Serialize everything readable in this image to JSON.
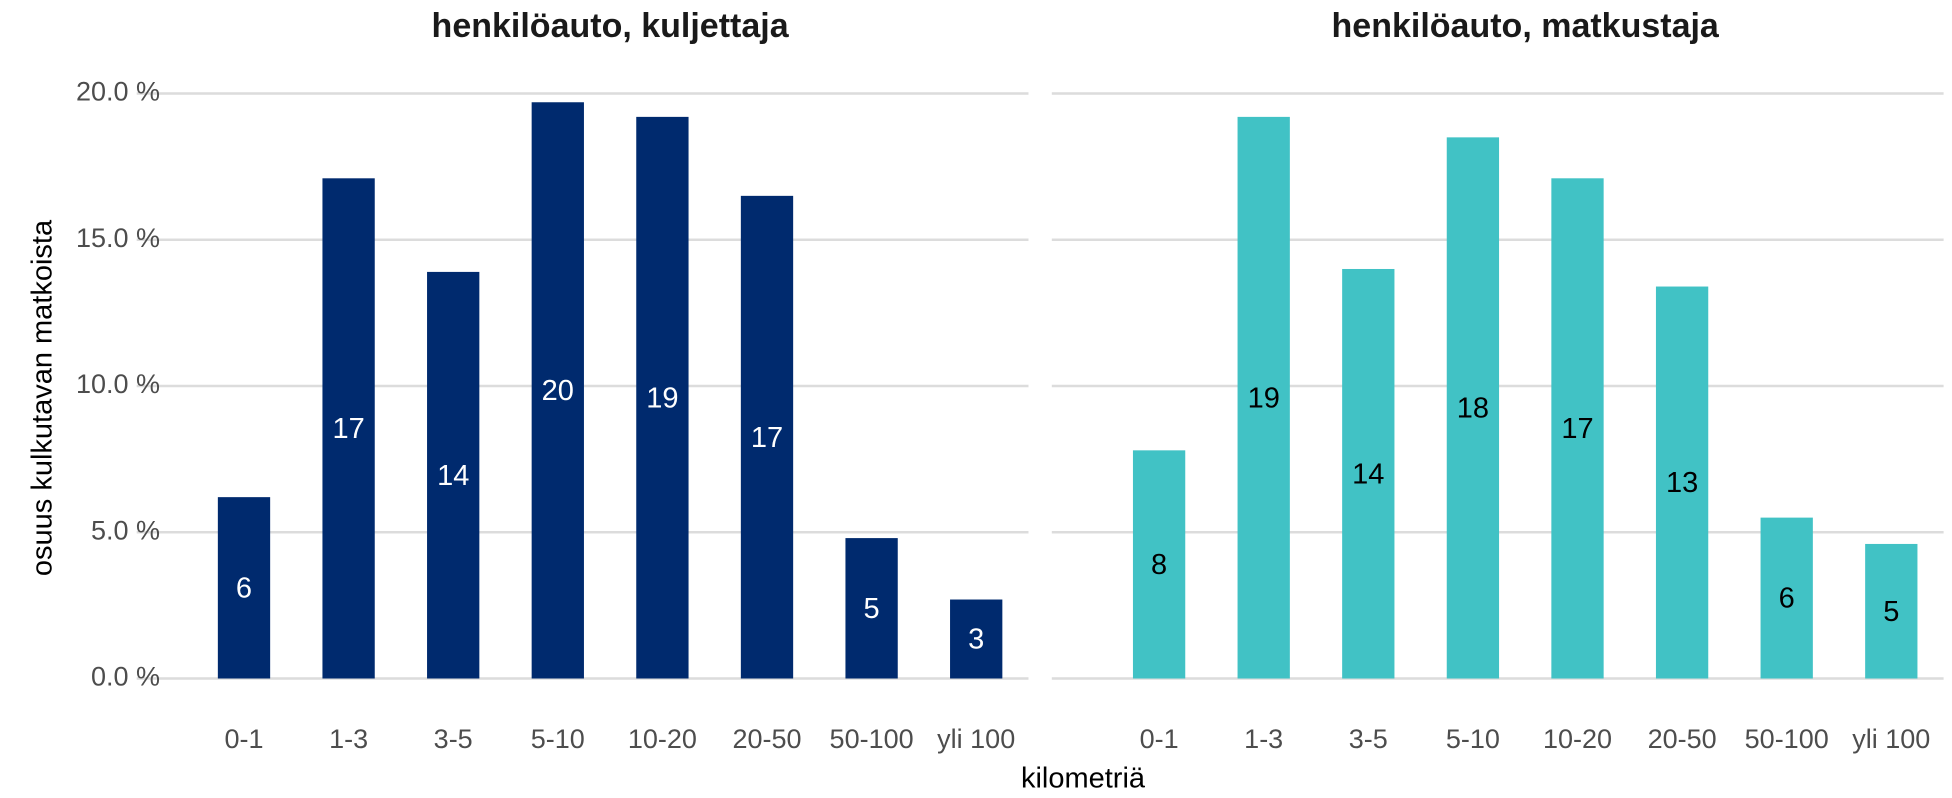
{
  "chart_data": [
    {
      "type": "bar",
      "title": "henkilöauto, kuljettaja",
      "categories": [
        "0-1",
        "1-3",
        "3-5",
        "5-10",
        "10-20",
        "20-50",
        "50-100",
        "yli 100"
      ],
      "values": [
        6.2,
        17.1,
        13.9,
        19.7,
        19.2,
        16.5,
        4.8,
        2.7
      ],
      "value_labels": [
        "6",
        "17",
        "14",
        "20",
        "19",
        "17",
        "5",
        "3"
      ],
      "color": "#002a6e",
      "label_color": "#ffffff",
      "ylim": [
        0,
        20.7
      ],
      "yticks": [
        {
          "value": 0,
          "label": "0.0 %"
        },
        {
          "value": 5,
          "label": "5.0 %"
        },
        {
          "value": 10,
          "label": "10.0 %"
        },
        {
          "value": 15,
          "label": "15.0 %"
        },
        {
          "value": 20,
          "label": "20.0 %"
        }
      ],
      "grid": true
    },
    {
      "type": "bar",
      "title": "henkilöauto, matkustaja",
      "categories": [
        "0-1",
        "1-3",
        "3-5",
        "5-10",
        "10-20",
        "20-50",
        "50-100",
        "yli 100"
      ],
      "values": [
        7.8,
        19.2,
        14.0,
        18.5,
        17.1,
        13.4,
        5.5,
        4.6
      ],
      "value_labels": [
        "8",
        "19",
        "14",
        "18",
        "17",
        "13",
        "6",
        "5"
      ],
      "color": "#41c2c5",
      "label_color": "#000000",
      "ylim": [
        0,
        20.7
      ],
      "yticks": [
        0,
        5,
        10,
        15,
        20
      ],
      "grid": true
    }
  ],
  "xlabel": "kilometriä",
  "ylabel": "osuus kulkutavan matkoista"
}
